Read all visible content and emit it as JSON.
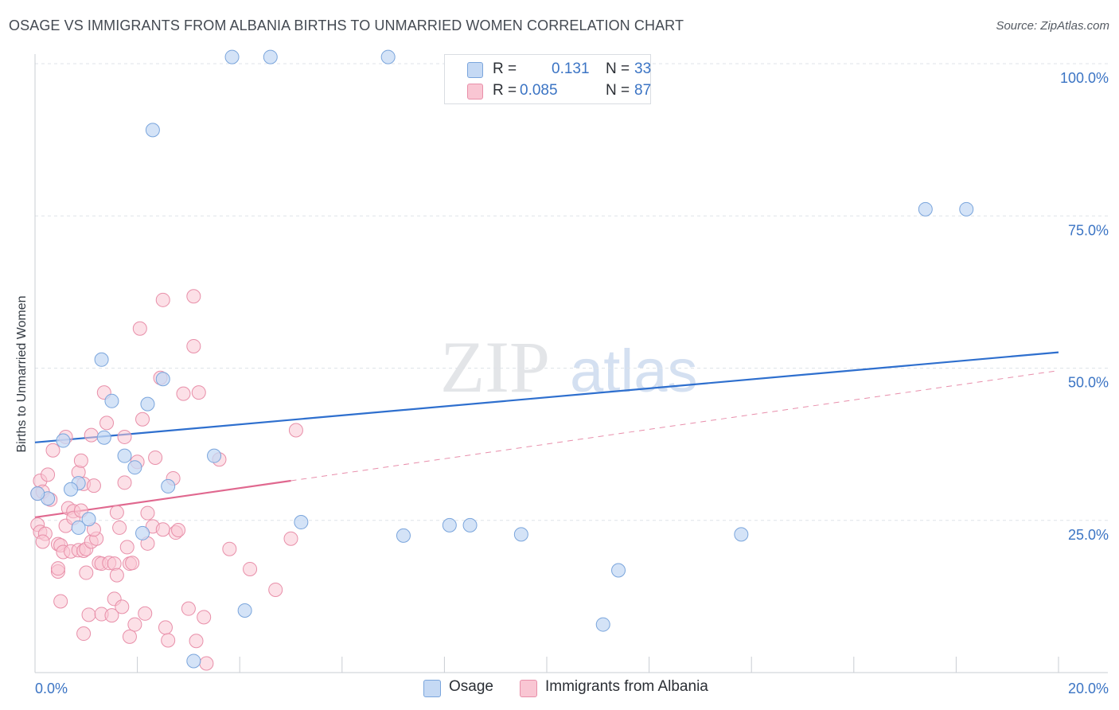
{
  "title": "OSAGE VS IMMIGRANTS FROM ALBANIA BIRTHS TO UNMARRIED WOMEN CORRELATION CHART",
  "source": "Source: ZipAtlas.com",
  "watermark": {
    "zip": "ZIP",
    "atlas": "atlas"
  },
  "legend_top": {
    "rows": [
      {
        "r_label": "R =",
        "r_value": "0.131",
        "n_label": "N =",
        "n_value": "33"
      },
      {
        "r_label": "R =",
        "r_value": "0.085",
        "n_label": "N =",
        "n_value": "87"
      }
    ]
  },
  "legend_bottom": {
    "items": [
      "Osage",
      "Immigrants from Albania"
    ]
  },
  "colors": {
    "osage_fill": "#c5d9f4",
    "osage_stroke": "#7aa5dc",
    "osage_line": "#2e6fce",
    "albania_fill": "#f9c6d3",
    "albania_stroke": "#e88fa9",
    "albania_line": "#e0688f",
    "tick_label": "#3b74c4",
    "grid": "#dfe3e8"
  },
  "chart_data": {
    "type": "scatter",
    "title": "OSAGE VS IMMIGRANTS FROM ALBANIA BIRTHS TO UNMARRIED WOMEN CORRELATION CHART",
    "xlabel": "",
    "ylabel": "Births to Unmarried Women",
    "xlim": [
      0,
      20
    ],
    "ylim": [
      0,
      100
    ],
    "x_tick_labels": [
      "0.0%",
      "20.0%"
    ],
    "y_tick_labels": [
      "100.0%",
      "75.0%",
      "50.0%",
      "25.0%"
    ],
    "y_tick_values": [
      100,
      75,
      50,
      25
    ],
    "series": [
      {
        "name": "Osage",
        "r": 0.131,
        "n": 33,
        "points": [
          [
            3.85,
            101.1
          ],
          [
            4.6,
            101.1
          ],
          [
            6.9,
            101.1
          ],
          [
            2.3,
            89.1
          ],
          [
            17.4,
            76.1
          ],
          [
            18.2,
            76.1
          ],
          [
            1.3,
            51.4
          ],
          [
            2.5,
            48.2
          ],
          [
            1.5,
            44.6
          ],
          [
            2.2,
            44.1
          ],
          [
            1.35,
            38.6
          ],
          [
            1.75,
            35.6
          ],
          [
            3.5,
            35.6
          ],
          [
            1.95,
            33.7
          ],
          [
            0.55,
            38.1
          ],
          [
            0.25,
            28.6
          ],
          [
            0.85,
            31.1
          ],
          [
            0.7,
            30.1
          ],
          [
            2.6,
            30.6
          ],
          [
            0.05,
            29.4
          ],
          [
            1.05,
            25.2
          ],
          [
            0.85,
            23.8
          ],
          [
            5.2,
            24.7
          ],
          [
            2.1,
            22.9
          ],
          [
            7.2,
            22.5
          ],
          [
            8.1,
            24.2
          ],
          [
            8.5,
            24.2
          ],
          [
            9.5,
            22.7
          ],
          [
            13.8,
            22.7
          ],
          [
            11.4,
            16.8
          ],
          [
            4.1,
            10.2
          ],
          [
            11.1,
            7.9
          ],
          [
            3.1,
            1.9
          ]
        ]
      },
      {
        "name": "Immigrants from Albania",
        "r": 0.085,
        "n": 87,
        "points": [
          [
            0.05,
            29.4
          ],
          [
            0.1,
            31.5
          ],
          [
            0.15,
            29.7
          ],
          [
            0.05,
            24.3
          ],
          [
            0.1,
            23.1
          ],
          [
            0.2,
            22.8
          ],
          [
            0.15,
            21.5
          ],
          [
            0.25,
            32.5
          ],
          [
            0.3,
            28.4
          ],
          [
            0.35,
            36.5
          ],
          [
            0.45,
            21.1
          ],
          [
            0.5,
            20.9
          ],
          [
            0.6,
            24.1
          ],
          [
            0.55,
            19.8
          ],
          [
            0.45,
            16.6
          ],
          [
            0.45,
            17.1
          ],
          [
            0.5,
            11.7
          ],
          [
            0.6,
            38.7
          ],
          [
            0.65,
            27.0
          ],
          [
            0.75,
            26.5
          ],
          [
            0.7,
            19.9
          ],
          [
            0.75,
            25.4
          ],
          [
            0.85,
            20.1
          ],
          [
            0.85,
            32.9
          ],
          [
            0.9,
            34.8
          ],
          [
            0.95,
            31.0
          ],
          [
            0.9,
            26.6
          ],
          [
            0.95,
            20.0
          ],
          [
            0.95,
            6.4
          ],
          [
            1.0,
            16.4
          ],
          [
            1.0,
            20.3
          ],
          [
            1.05,
            9.5
          ],
          [
            1.1,
            39.0
          ],
          [
            1.15,
            30.7
          ],
          [
            1.1,
            21.5
          ],
          [
            1.2,
            22.0
          ],
          [
            1.15,
            23.5
          ],
          [
            1.25,
            18.0
          ],
          [
            1.3,
            17.9
          ],
          [
            1.3,
            9.6
          ],
          [
            1.35,
            46.0
          ],
          [
            1.4,
            41.0
          ],
          [
            1.45,
            18.0
          ],
          [
            1.5,
            9.4
          ],
          [
            1.55,
            12.1
          ],
          [
            1.55,
            17.9
          ],
          [
            1.6,
            16.0
          ],
          [
            1.65,
            23.8
          ],
          [
            1.6,
            26.3
          ],
          [
            1.7,
            10.8
          ],
          [
            1.75,
            31.2
          ],
          [
            1.75,
            38.7
          ],
          [
            1.8,
            20.6
          ],
          [
            1.85,
            17.9
          ],
          [
            1.9,
            18.0
          ],
          [
            1.85,
            5.9
          ],
          [
            1.95,
            7.9
          ],
          [
            2.0,
            34.6
          ],
          [
            2.05,
            56.5
          ],
          [
            2.1,
            41.6
          ],
          [
            2.15,
            9.7
          ],
          [
            2.2,
            26.2
          ],
          [
            2.2,
            21.2
          ],
          [
            2.3,
            24.0
          ],
          [
            2.35,
            35.3
          ],
          [
            2.45,
            48.4
          ],
          [
            2.5,
            23.5
          ],
          [
            2.5,
            61.2
          ],
          [
            2.55,
            7.4
          ],
          [
            2.6,
            5.3
          ],
          [
            2.7,
            31.9
          ],
          [
            2.75,
            23.0
          ],
          [
            2.8,
            23.4
          ],
          [
            2.9,
            45.8
          ],
          [
            3.0,
            10.5
          ],
          [
            3.1,
            53.6
          ],
          [
            3.1,
            61.8
          ],
          [
            3.15,
            5.2
          ],
          [
            3.2,
            46.0
          ],
          [
            3.3,
            9.1
          ],
          [
            3.35,
            1.5
          ],
          [
            3.6,
            35.0
          ],
          [
            3.8,
            20.3
          ],
          [
            4.2,
            17.0
          ],
          [
            4.7,
            13.6
          ],
          [
            5.0,
            22.0
          ],
          [
            5.1,
            39.8
          ]
        ]
      }
    ],
    "trendlines": [
      {
        "series": "Osage",
        "x": [
          0,
          20
        ],
        "y": [
          37.8,
          52.6
        ],
        "style": "solid"
      },
      {
        "series": "Immigrants from Albania",
        "x": [
          0,
          5.0
        ],
        "y": [
          25.5,
          31.5
        ],
        "style": "solid"
      },
      {
        "series": "Immigrants from Albania",
        "x": [
          5.0,
          20
        ],
        "y": [
          31.5,
          49.6
        ],
        "style": "dashed"
      }
    ]
  }
}
